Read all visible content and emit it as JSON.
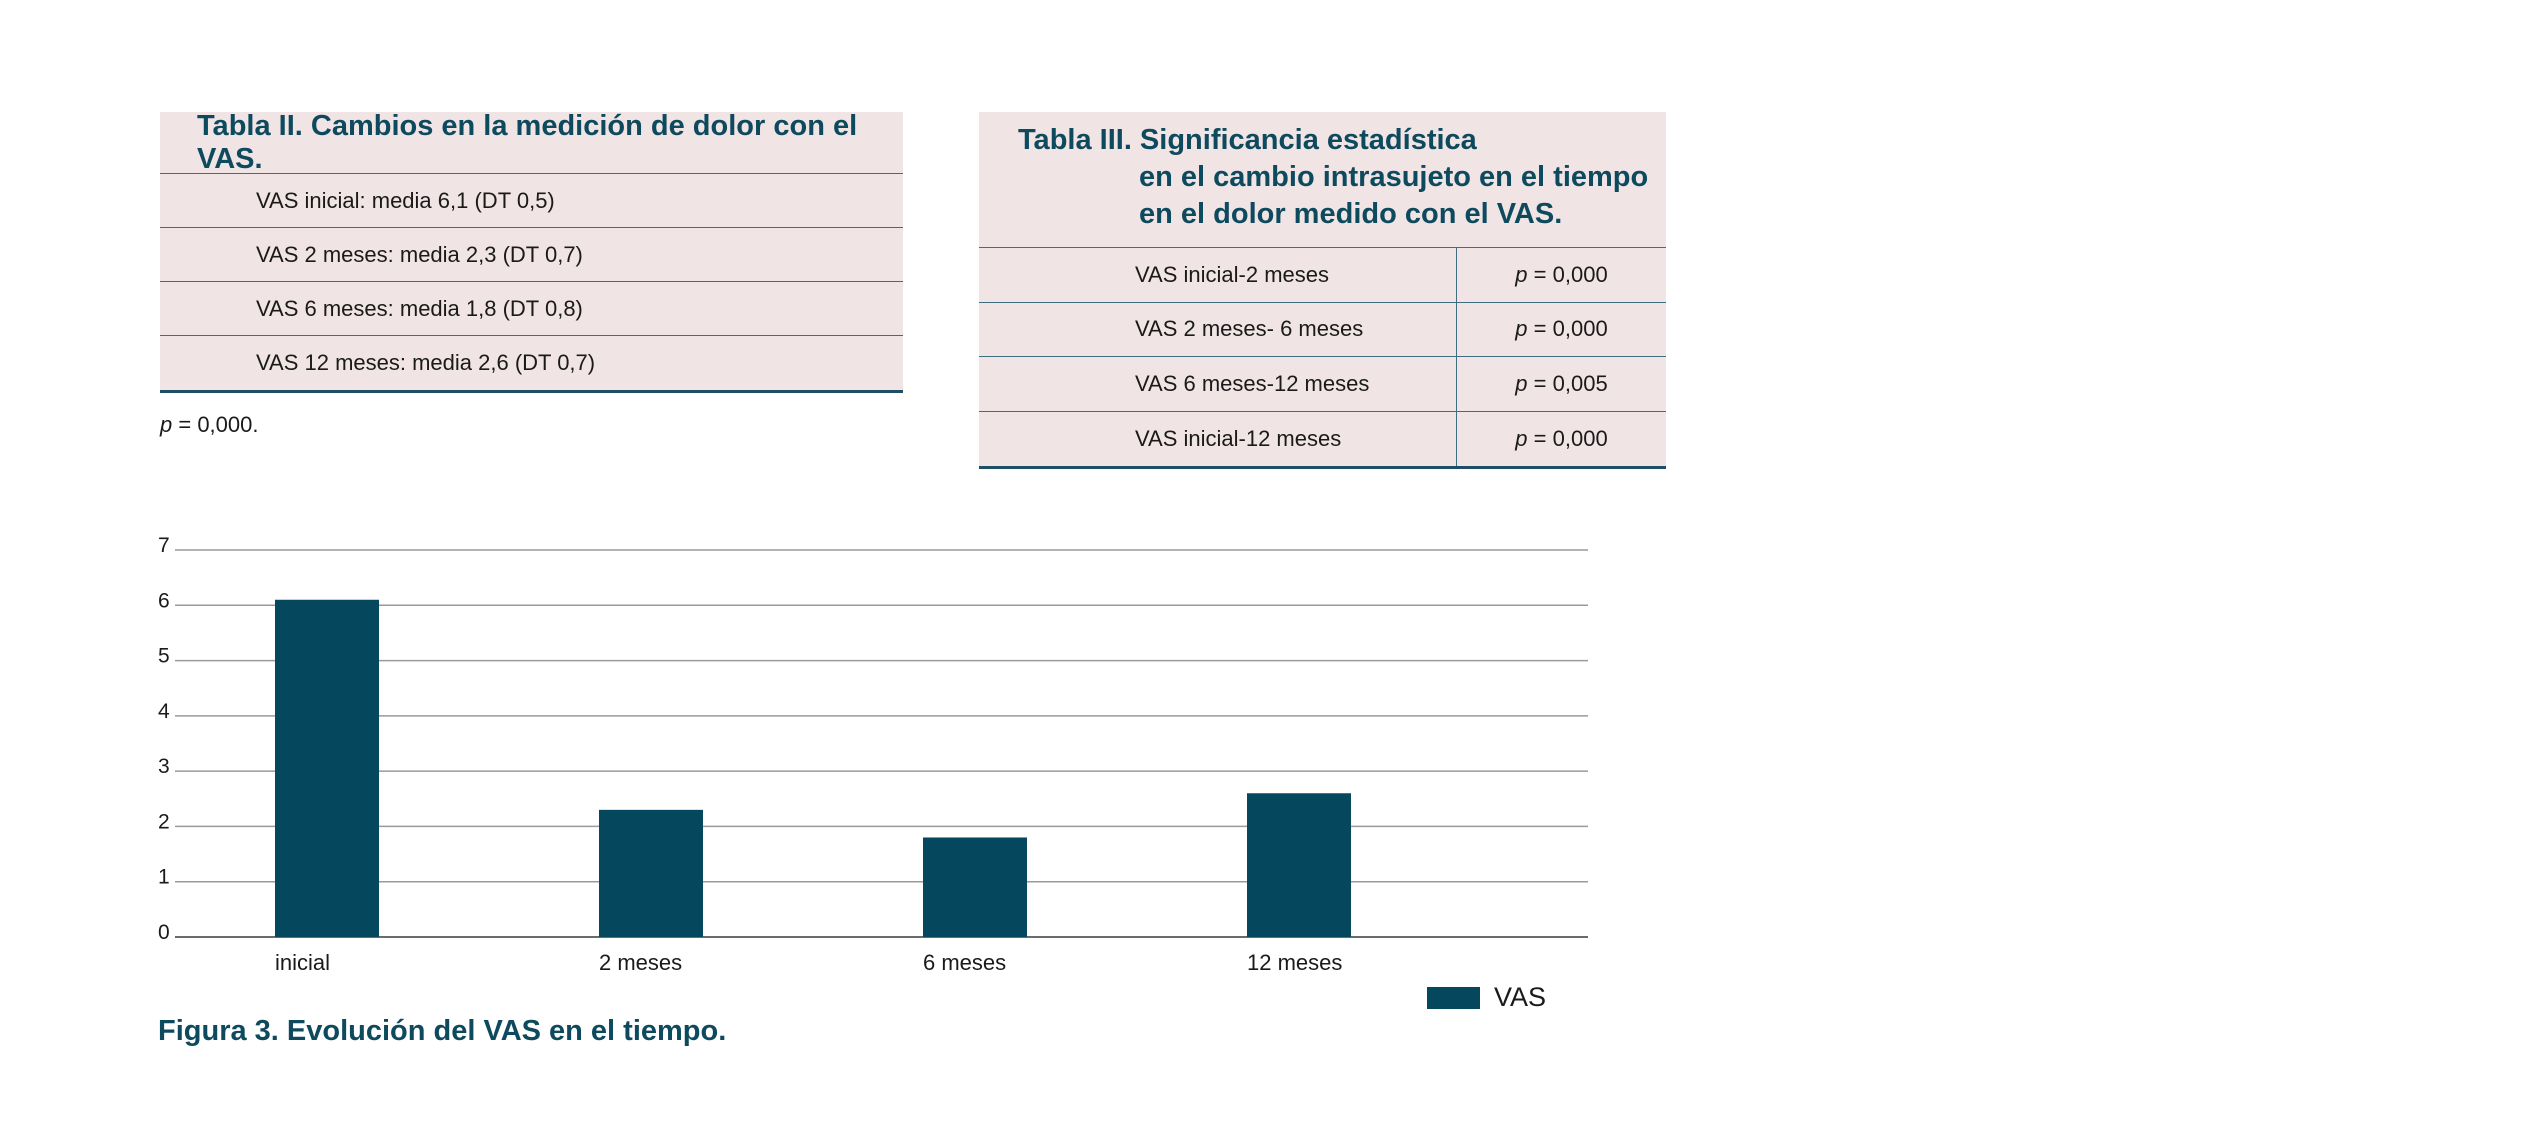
{
  "table2": {
    "title": "Tabla II. Cambios en la medición de dolor con el VAS.",
    "rows": [
      "VAS inicial: media 6,1 (DT 0,5)",
      "VAS 2 meses: media 2,3 (DT 0,7)",
      "VAS 6 meses: media 1,8 (DT 0,8)",
      "VAS 12 meses: media 2,6 (DT 0,7)"
    ],
    "note_p": "p",
    "note_rest": " = 0,000."
  },
  "table3": {
    "title_l1": "Tabla III. Significancia estadística",
    "title_l2": "en el cambio intrasujeto en el tiempo",
    "title_l3": "en el dolor medido con el VAS.",
    "rows": [
      {
        "label": "VAS inicial-2 meses",
        "p": "p",
        "value": " = 0,000"
      },
      {
        "label": "VAS 2 meses- 6 meses",
        "p": "p",
        "value": " = 0,000"
      },
      {
        "label": "VAS 6 meses-12 meses",
        "p": "p",
        "value": " = 0,005"
      },
      {
        "label": "VAS inicial-12 meses",
        "p": "p",
        "value": " = 0,000"
      }
    ]
  },
  "chart_data": {
    "type": "bar",
    "categories": [
      "inicial",
      "2 meses",
      "6 meses",
      "12 meses"
    ],
    "series": [
      {
        "name": "VAS",
        "values": [
          6.1,
          2.3,
          1.8,
          2.6
        ],
        "color": "#05475d"
      }
    ],
    "ylim": [
      0,
      7
    ],
    "yticks": [
      "0",
      "1",
      "2",
      "3",
      "4",
      "5",
      "6",
      "7"
    ],
    "grid": true,
    "legend": "bottom-right"
  },
  "figure_caption": "Figura 3. Evolución del VAS en el tiempo."
}
